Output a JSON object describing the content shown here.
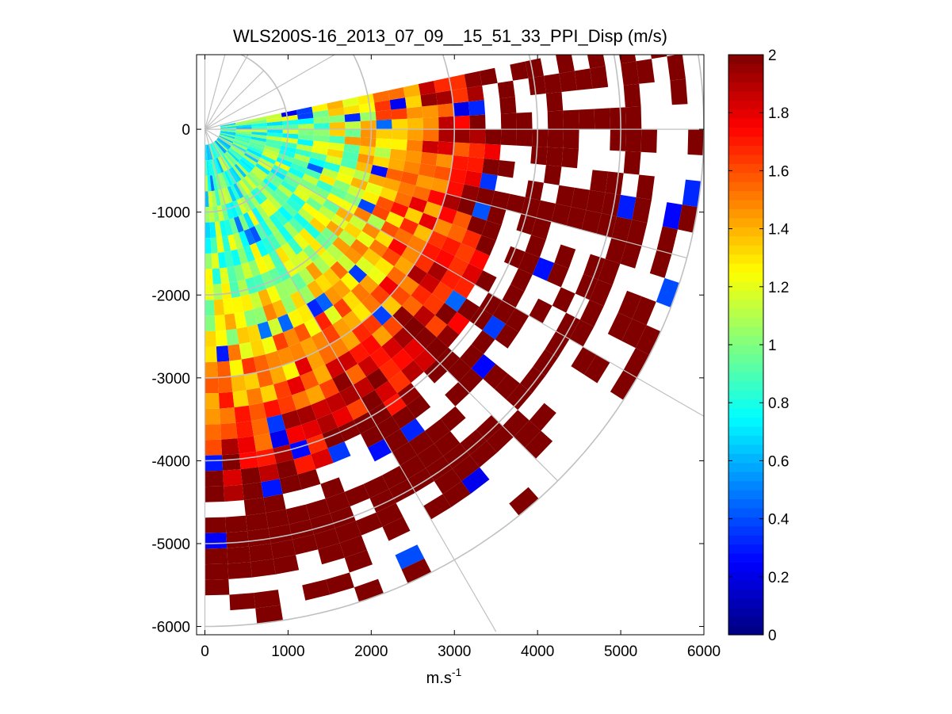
{
  "chart_data": {
    "type": "heatmap",
    "title": "WLS200S-16_2013_07_09__15_51_33_PPI_Disp (m/s)",
    "xlabel": "m.s",
    "xlabel_superscript": "-1",
    "ylabel": "",
    "xlim": [
      -100,
      6000
    ],
    "ylim": [
      -6100,
      900
    ],
    "x_ticks": [
      0,
      1000,
      2000,
      3000,
      4000,
      5000,
      6000
    ],
    "y_ticks": [
      0,
      -1000,
      -2000,
      -3000,
      -4000,
      -5000,
      -6000
    ],
    "grid": true,
    "grid_rings_m": [
      1000,
      2000,
      3000,
      4000,
      5000,
      6000
    ],
    "grid_spoke_angles_deg": [
      0,
      30,
      60,
      90
    ],
    "sector_azimuth_deg": [
      -90,
      12
    ],
    "max_range_m": 6000,
    "range_bins": 32,
    "angular_bins": 34,
    "colormap": "jet",
    "colorbar": {
      "min": 0,
      "max": 2,
      "ticks": [
        0,
        0.2,
        0.4,
        0.6,
        0.8,
        1,
        1.2,
        1.4,
        1.6,
        1.8,
        2
      ],
      "placement": "right"
    },
    "value_pattern": {
      "near_range_value": 0.78,
      "mid_range_value": 1.05,
      "far_range_value": 2.0,
      "transition_start_range_m": 1400,
      "transition_end_range_m": 4200,
      "far_gap_fraction": 0.35
    }
  }
}
